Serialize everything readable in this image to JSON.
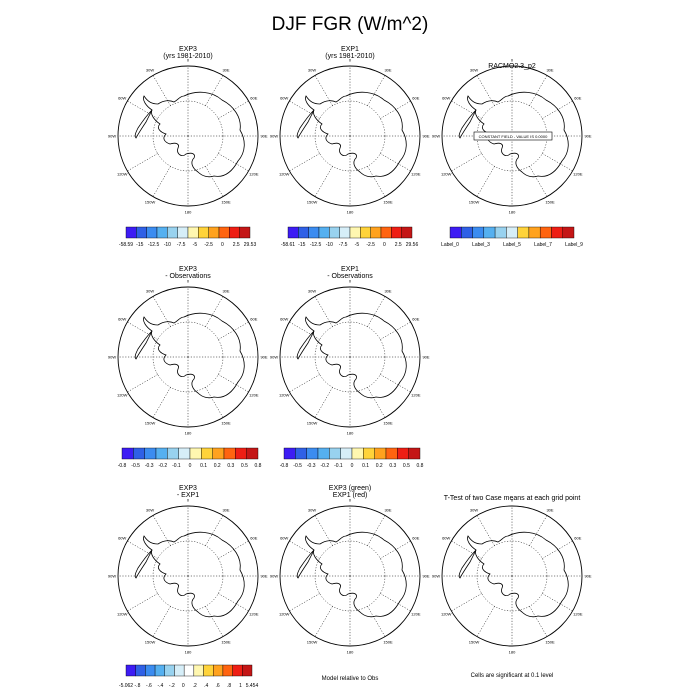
{
  "figure": {
    "title": "DJF FGR (W/m^2)",
    "colors": {
      "diverging": [
        "#3d1cf4",
        "#2f60e6",
        "#3b8cf0",
        "#55b0f0",
        "#98d2ef",
        "#d6eef8",
        "#fff7b0",
        "#ffd33a",
        "#ffa21e",
        "#ff6410",
        "#ee1e14",
        "#c41616"
      ],
      "label_bar": [
        "#3d1cf4",
        "#2f60e6",
        "#3b8cf0",
        "#55b0f0",
        "#98d2ef",
        "#d6eef8",
        "#ffd33a",
        "#ffa21e",
        "#ff6410",
        "#ee1e14",
        "#c41616"
      ],
      "sig_bar": [
        "#3d1cf4",
        "#2f60e6",
        "#3b8cf0",
        "#55b0f0",
        "#98d2ef",
        "#d6eef8",
        "#ffffff",
        "#fff7b0",
        "#ffd33a",
        "#ffa21e",
        "#ff6410",
        "#ee1e14",
        "#c41616"
      ]
    },
    "panels": [
      {
        "title_lines": [
          "EXP3",
          "(yrs 1981-2010)"
        ]
      },
      {
        "title_lines": [
          "EXP1",
          "(yrs 1981-2010)"
        ]
      },
      {
        "title_lines": [
          "RACMO2.3_p2"
        ],
        "map_note": "CONSTANT FIELD - VALUE IS 0.0000"
      },
      {
        "title_lines": [
          "EXP3",
          "- Observations"
        ]
      },
      {
        "title_lines": [
          "EXP1",
          "- Observations"
        ]
      },
      {
        "title_lines": [
          "EXP3",
          "- EXP1"
        ]
      },
      {
        "title_lines": [
          "EXP3 (green)",
          "EXP1 (red)"
        ]
      },
      {
        "title_lines": [
          "T-Test of two Case means at each grid point"
        ]
      }
    ],
    "map_labels": {
      "lon": [
        "0",
        "30E",
        "60E",
        "90E",
        "120E",
        "150E",
        "180",
        "150W",
        "120W",
        "90W",
        "60W",
        "30W"
      ]
    },
    "colorbars": [
      {
        "labels": [
          "-58.59",
          "-15",
          "-12.5",
          "-10",
          "-7.5",
          "-5",
          "-2.5",
          "0",
          "2.5",
          "29.53"
        ]
      },
      {
        "labels": [
          "-58.61",
          "-15",
          "-12.5",
          "-10",
          "-7.5",
          "-5",
          "-2.5",
          "0",
          "2.5",
          "29.56"
        ]
      },
      {
        "labels": [
          "Label_0",
          "Label_3",
          "Label_5",
          "Label_7",
          "Label_9"
        ]
      },
      {
        "labels": [
          "-0.8",
          "-0.5",
          "-0.3",
          "-0.2",
          "-0.1",
          "0",
          "0.1",
          "0.2",
          "0.3",
          "0.5",
          "0.8"
        ]
      },
      {
        "labels": [
          "-0.8",
          "-0.5",
          "-0.3",
          "-0.2",
          "-0.1",
          "0",
          "0.1",
          "0.2",
          "0.3",
          "0.5",
          "0.8"
        ]
      },
      {
        "labels": [
          "-5.062",
          "-.8",
          "-.6",
          "-.4",
          "-.2",
          "0",
          ".2",
          ".4",
          ".6",
          ".8",
          "1",
          "5.454"
        ]
      }
    ],
    "captions": {
      "model_obs": "Model relative to Obs",
      "significance": "Cells are significant at 0.1 level"
    }
  }
}
